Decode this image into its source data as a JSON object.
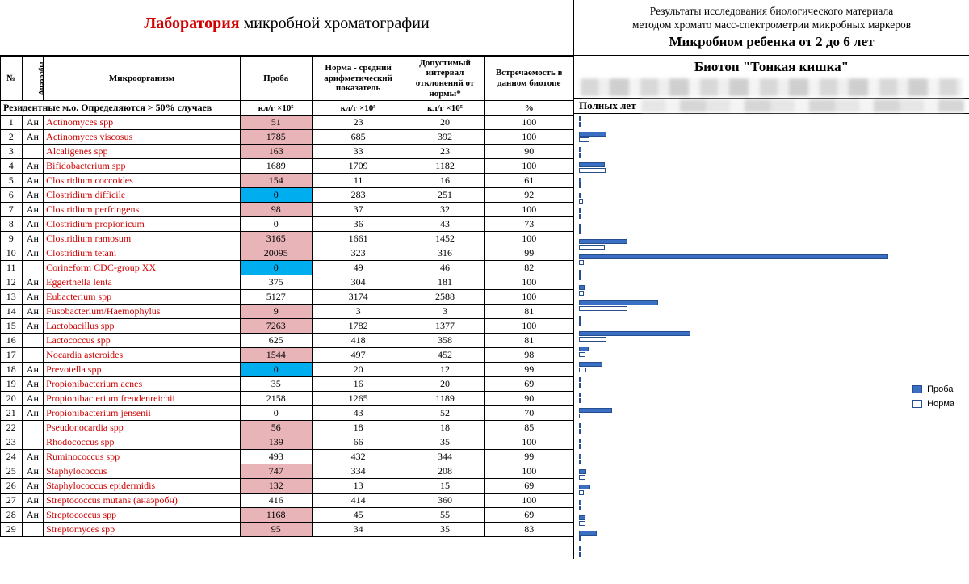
{
  "header": {
    "lab_red": "Лаборатория",
    "lab_rest": " микробной хроматографии",
    "right_line1": "Результаты исследования биологического материала",
    "right_line2": "методом хромато масс-спектрометрии микробных маркеров",
    "right_title": "Микробиом ребенка от 2 до 6 лет"
  },
  "columns": {
    "num": "№",
    "anaerob": "Анаэробы",
    "organism": "Микроорганизм",
    "sample": "Проба",
    "norm": "Норма - средний арифметический показатель",
    "deviation": "Допустимый интервал отклонений от нормы*",
    "frequency": "Встречаемость в данном биотопе"
  },
  "units_row": {
    "section": "Резидентные м.о. Определяются > 50% случаев",
    "u1": "кл/г ×10⁵",
    "u2": "кл/г ×10⁵",
    "u3": "кл/г ×10⁵",
    "u4": "%"
  },
  "right": {
    "biotop": "Биотоп \"Тонкая кишка\"",
    "years_label": "Полных лет",
    "legend_sample": "Проба",
    "legend_norm": "Норма"
  },
  "chart": {
    "max_value": 21000,
    "bar_colors": {
      "sample": "#3b6fc4",
      "norm_border": "#274e8c",
      "norm_fill": "#ffffff"
    }
  },
  "highlight_colors": {
    "pink": "#e9b4b8",
    "blue": "#00aef0"
  },
  "rows": [
    {
      "n": 1,
      "an": "Ан",
      "org": "Actinomyces spp",
      "sample": 51,
      "norm": 23,
      "dev": 20,
      "freq": 100,
      "hl": "pink"
    },
    {
      "n": 2,
      "an": "Ан",
      "org": "Actinomyces viscosus",
      "sample": 1785,
      "norm": 685,
      "dev": 392,
      "freq": 100,
      "hl": "pink"
    },
    {
      "n": 3,
      "an": "",
      "org": "Alcaligenes spp",
      "sample": 163,
      "norm": 33,
      "dev": 23,
      "freq": 90,
      "hl": "pink"
    },
    {
      "n": 4,
      "an": "Ан",
      "org": "Bifidobacterium spp",
      "sample": 1689,
      "norm": 1709,
      "dev": 1182,
      "freq": 100,
      "hl": ""
    },
    {
      "n": 5,
      "an": "Ан",
      "org": "Clostridium coccoides",
      "sample": 154,
      "norm": 11,
      "dev": 16,
      "freq": 61,
      "hl": "pink"
    },
    {
      "n": 6,
      "an": "Ан",
      "org": "Clostridium difficile",
      "sample": 0,
      "norm": 283,
      "dev": 251,
      "freq": 92,
      "hl": "blue"
    },
    {
      "n": 7,
      "an": "Ан",
      "org": "Clostridium perfringens",
      "sample": 98,
      "norm": 37,
      "dev": 32,
      "freq": 100,
      "hl": "pink"
    },
    {
      "n": 8,
      "an": "Ан",
      "org": "Clostridium propionicum",
      "sample": 0,
      "norm": 36,
      "dev": 43,
      "freq": 73,
      "hl": ""
    },
    {
      "n": 9,
      "an": "Ан",
      "org": "Clostridium ramosum",
      "sample": 3165,
      "norm": 1661,
      "dev": 1452,
      "freq": 100,
      "hl": "pink"
    },
    {
      "n": 10,
      "an": "Ан",
      "org": "Clostridium tetani",
      "sample": 20095,
      "norm": 323,
      "dev": 316,
      "freq": 99,
      "hl": "pink"
    },
    {
      "n": 11,
      "an": "",
      "org": "Corineform CDC-group XX",
      "sample": 0,
      "norm": 49,
      "dev": 46,
      "freq": 82,
      "hl": "blue"
    },
    {
      "n": 12,
      "an": "Ан",
      "org": "Eggerthella lenta",
      "sample": 375,
      "norm": 304,
      "dev": 181,
      "freq": 100,
      "hl": ""
    },
    {
      "n": 13,
      "an": "Ан",
      "org": "Eubacterium spp",
      "sample": 5127,
      "norm": 3174,
      "dev": 2588,
      "freq": 100,
      "hl": ""
    },
    {
      "n": 14,
      "an": "Ан",
      "org": "Fusobacterium/Haemophylus",
      "sample": 9,
      "norm": 3,
      "dev": 3,
      "freq": 81,
      "hl": "pink"
    },
    {
      "n": 15,
      "an": "Ан",
      "org": "Lactobacillus spp",
      "sample": 7263,
      "norm": 1782,
      "dev": 1377,
      "freq": 100,
      "hl": "pink"
    },
    {
      "n": 16,
      "an": "",
      "org": "Lactococcus spp",
      "sample": 625,
      "norm": 418,
      "dev": 358,
      "freq": 81,
      "hl": ""
    },
    {
      "n": 17,
      "an": "",
      "org": "Nocardia asteroides",
      "sample": 1544,
      "norm": 497,
      "dev": 452,
      "freq": 98,
      "hl": "pink"
    },
    {
      "n": 18,
      "an": "Ан",
      "org": "Prevotella spp",
      "sample": 0,
      "norm": 20,
      "dev": 12,
      "freq": 99,
      "hl": "blue"
    },
    {
      "n": 19,
      "an": "Ан",
      "org": "Propionibacterium acnes",
      "sample": 35,
      "norm": 16,
      "dev": 20,
      "freq": 69,
      "hl": ""
    },
    {
      "n": 20,
      "an": "Ан",
      "org": "Propionibacterium freudenreichii",
      "sample": 2158,
      "norm": 1265,
      "dev": 1189,
      "freq": 90,
      "hl": ""
    },
    {
      "n": 21,
      "an": "Ан",
      "org": "Propionibacterium jensenii",
      "sample": 0,
      "norm": 43,
      "dev": 52,
      "freq": 70,
      "hl": ""
    },
    {
      "n": 22,
      "an": "",
      "org": "Pseudonocardia spp",
      "sample": 56,
      "norm": 18,
      "dev": 18,
      "freq": 85,
      "hl": "pink"
    },
    {
      "n": 23,
      "an": "",
      "org": "Rhodococcus spp",
      "sample": 139,
      "norm": 66,
      "dev": 35,
      "freq": 100,
      "hl": "pink"
    },
    {
      "n": 24,
      "an": "Ан",
      "org": "Ruminococcus spp",
      "sample": 493,
      "norm": 432,
      "dev": 344,
      "freq": 99,
      "hl": ""
    },
    {
      "n": 25,
      "an": "Ан",
      "org": "Staphylococcus",
      "sample": 747,
      "norm": 334,
      "dev": 208,
      "freq": 100,
      "hl": "pink"
    },
    {
      "n": 26,
      "an": "Ан",
      "org": "Staphylococcus epidermidis",
      "sample": 132,
      "norm": 13,
      "dev": 15,
      "freq": 69,
      "hl": "pink"
    },
    {
      "n": 27,
      "an": "Ан",
      "org": "Streptococcus mutans (анаэробн)",
      "sample": 416,
      "norm": 414,
      "dev": 360,
      "freq": 100,
      "hl": ""
    },
    {
      "n": 28,
      "an": "Ан",
      "org": "Streptococcus spp",
      "sample": 1168,
      "norm": 45,
      "dev": 55,
      "freq": 69,
      "hl": "pink"
    },
    {
      "n": 29,
      "an": "",
      "org": "Streptomyces spp",
      "sample": 95,
      "norm": 34,
      "dev": 35,
      "freq": 83,
      "hl": "pink"
    }
  ]
}
